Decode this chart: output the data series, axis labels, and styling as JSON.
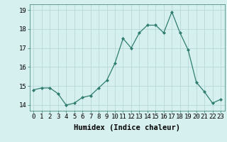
{
  "x": [
    0,
    1,
    2,
    3,
    4,
    5,
    6,
    7,
    8,
    9,
    10,
    11,
    12,
    13,
    14,
    15,
    16,
    17,
    18,
    19,
    20,
    21,
    22,
    23
  ],
  "y": [
    14.8,
    14.9,
    14.9,
    14.6,
    14.0,
    14.1,
    14.4,
    14.5,
    14.9,
    15.3,
    16.2,
    17.5,
    17.0,
    17.8,
    18.2,
    18.2,
    17.8,
    18.9,
    17.8,
    16.9,
    15.2,
    14.7,
    14.1,
    14.3
  ],
  "xlabel": "Humidex (Indice chaleur)",
  "ylabel": "",
  "xlim": [
    -0.5,
    23.5
  ],
  "ylim": [
    13.7,
    19.3
  ],
  "yticks": [
    14,
    15,
    16,
    17,
    18,
    19
  ],
  "xticks": [
    0,
    1,
    2,
    3,
    4,
    5,
    6,
    7,
    8,
    9,
    10,
    11,
    12,
    13,
    14,
    15,
    16,
    17,
    18,
    19,
    20,
    21,
    22,
    23
  ],
  "line_color": "#2e7d6e",
  "marker": "D",
  "marker_size": 2.0,
  "bg_color": "#d6f0f0",
  "grid_color": "#b8d8d8",
  "axis_label_fontsize": 7.5,
  "tick_fontsize": 6.5
}
